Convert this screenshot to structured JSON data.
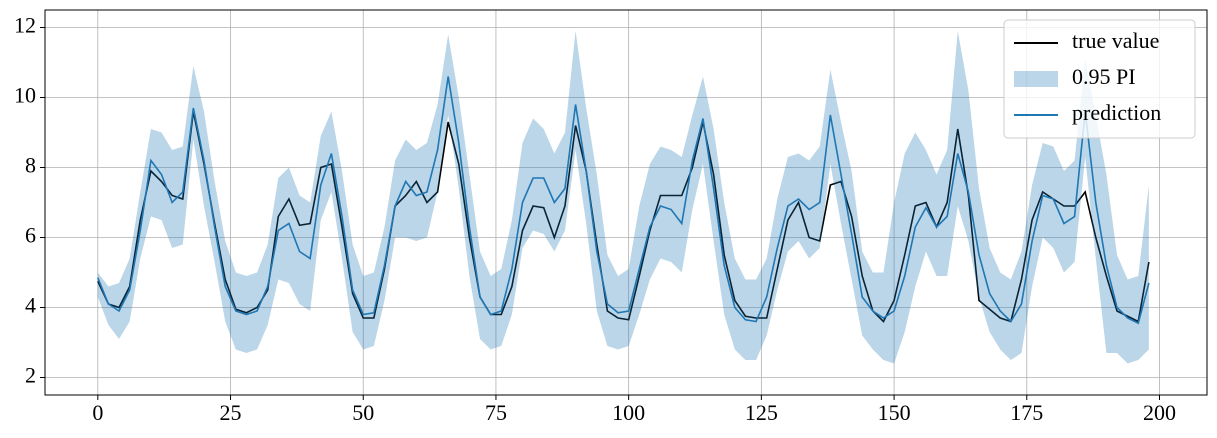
{
  "chart_data": {
    "type": "line",
    "x": [
      0,
      2,
      4,
      6,
      8,
      10,
      12,
      14,
      16,
      18,
      20,
      22,
      24,
      26,
      28,
      30,
      32,
      34,
      36,
      38,
      40,
      42,
      44,
      46,
      48,
      50,
      52,
      54,
      56,
      58,
      60,
      62,
      64,
      66,
      68,
      70,
      72,
      74,
      76,
      78,
      80,
      82,
      84,
      86,
      88,
      90,
      92,
      94,
      96,
      98,
      100,
      102,
      104,
      106,
      108,
      110,
      112,
      114,
      116,
      118,
      120,
      122,
      124,
      126,
      128,
      130,
      132,
      134,
      136,
      138,
      140,
      142,
      144,
      146,
      148,
      150,
      152,
      154,
      156,
      158,
      160,
      162,
      164,
      166,
      168,
      170,
      172,
      174,
      176,
      178,
      180,
      182,
      184,
      186,
      188,
      190,
      192,
      194,
      196,
      198
    ],
    "series": [
      {
        "name": "true value",
        "color": "#000000",
        "values": [
          4.75,
          4.1,
          4.0,
          4.6,
          6.5,
          7.9,
          7.6,
          7.2,
          7.1,
          9.6,
          8.1,
          6.4,
          4.8,
          3.95,
          3.85,
          4.0,
          4.5,
          6.6,
          7.1,
          6.35,
          6.4,
          8.0,
          8.1,
          6.3,
          4.4,
          3.7,
          3.7,
          5.1,
          6.9,
          7.2,
          7.6,
          7.0,
          7.3,
          9.3,
          8.1,
          6.0,
          4.3,
          3.8,
          3.8,
          4.6,
          6.2,
          6.9,
          6.85,
          6.0,
          6.9,
          9.2,
          7.9,
          5.8,
          3.9,
          3.7,
          3.65,
          4.9,
          6.2,
          7.2,
          7.2,
          7.2,
          8.0,
          9.3,
          7.8,
          5.5,
          4.2,
          3.75,
          3.7,
          3.7,
          5.1,
          6.5,
          7.0,
          6.0,
          5.9,
          7.5,
          7.6,
          6.6,
          4.9,
          3.9,
          3.6,
          4.2,
          5.5,
          6.9,
          7.0,
          6.3,
          7.0,
          9.1,
          7.2,
          4.2,
          3.95,
          3.7,
          3.6,
          4.8,
          6.5,
          7.3,
          7.1,
          6.9,
          6.9,
          7.3,
          6.0,
          4.9,
          3.9,
          3.75,
          3.6,
          5.3
        ]
      },
      {
        "name": "0.95 PI",
        "color": "#1f77b4",
        "opacity": 0.3,
        "type": "band",
        "lower": [
          4.3,
          3.5,
          3.1,
          3.6,
          5.4,
          6.6,
          6.5,
          5.7,
          5.8,
          8.8,
          6.9,
          5.3,
          3.6,
          2.8,
          2.7,
          2.8,
          3.5,
          4.8,
          4.7,
          4.1,
          3.9,
          6.5,
          7.3,
          5.4,
          3.3,
          2.8,
          2.9,
          4.2,
          6.0,
          6.0,
          5.9,
          6.0,
          7.3,
          9.5,
          7.4,
          4.9,
          3.1,
          2.8,
          2.9,
          3.8,
          5.7,
          6.2,
          6.1,
          5.6,
          6.2,
          8.5,
          6.4,
          3.9,
          2.9,
          2.8,
          2.9,
          3.8,
          4.8,
          5.4,
          5.3,
          5.0,
          6.8,
          8.1,
          5.9,
          3.8,
          2.8,
          2.5,
          2.5,
          3.2,
          4.5,
          5.6,
          5.9,
          5.4,
          5.7,
          8.1,
          6.4,
          4.8,
          3.2,
          2.8,
          2.5,
          2.4,
          3.3,
          4.6,
          5.6,
          4.9,
          4.9,
          6.9,
          5.9,
          4.3,
          3.3,
          2.8,
          2.5,
          2.7,
          4.6,
          6.0,
          5.7,
          5.0,
          5.3,
          8.3,
          5.4,
          2.7,
          2.7,
          2.4,
          2.5,
          2.8
        ],
        "upper": [
          5.0,
          4.6,
          4.7,
          5.4,
          7.3,
          9.1,
          9.0,
          8.5,
          8.6,
          10.9,
          9.6,
          7.6,
          5.9,
          5.0,
          4.9,
          5.0,
          5.8,
          7.7,
          8.0,
          7.2,
          7.0,
          8.9,
          9.6,
          7.9,
          5.8,
          4.9,
          5.0,
          6.3,
          8.2,
          8.8,
          8.5,
          8.7,
          9.8,
          11.8,
          10.0,
          7.8,
          5.6,
          4.9,
          5.1,
          6.5,
          8.7,
          9.4,
          9.1,
          8.4,
          9.0,
          11.9,
          9.7,
          7.8,
          5.5,
          4.9,
          5.1,
          6.9,
          8.1,
          8.6,
          8.5,
          8.3,
          9.5,
          10.6,
          9.1,
          7.0,
          5.4,
          4.8,
          4.8,
          5.4,
          7.1,
          8.3,
          8.4,
          8.2,
          8.6,
          10.8,
          9.3,
          7.9,
          5.6,
          5.0,
          5.0,
          7.0,
          8.4,
          9.0,
          8.5,
          7.8,
          8.5,
          11.9,
          10.2,
          7.4,
          5.7,
          5.0,
          4.8,
          5.6,
          7.5,
          8.7,
          8.6,
          7.9,
          8.2,
          11.1,
          9.5,
          7.8,
          5.5,
          4.8,
          4.9,
          7.5
        ]
      },
      {
        "name": "prediction",
        "color": "#1f77b4",
        "values": [
          4.85,
          4.1,
          3.9,
          4.5,
          6.2,
          8.2,
          7.8,
          7.0,
          7.3,
          9.7,
          8.2,
          6.3,
          4.6,
          3.9,
          3.8,
          3.9,
          4.6,
          6.2,
          6.4,
          5.6,
          5.4,
          7.5,
          8.4,
          6.6,
          4.5,
          3.8,
          3.85,
          5.2,
          6.9,
          7.6,
          7.2,
          7.3,
          8.5,
          10.6,
          8.7,
          6.3,
          4.3,
          3.8,
          3.9,
          5.1,
          7.0,
          7.7,
          7.7,
          7.0,
          7.4,
          9.8,
          7.9,
          5.6,
          4.1,
          3.85,
          3.9,
          5.1,
          6.3,
          6.9,
          6.8,
          6.4,
          8.2,
          9.4,
          7.4,
          5.2,
          4.0,
          3.65,
          3.6,
          4.3,
          5.7,
          6.9,
          7.1,
          6.8,
          7.0,
          9.5,
          7.8,
          6.1,
          4.3,
          3.9,
          3.7,
          3.9,
          4.9,
          6.3,
          6.85,
          6.3,
          6.6,
          8.4,
          7.3,
          5.5,
          4.4,
          3.9,
          3.6,
          4.1,
          5.9,
          7.2,
          7.1,
          6.4,
          6.6,
          9.6,
          7.0,
          5.2,
          4.0,
          3.7,
          3.55,
          4.7
        ]
      }
    ],
    "xlim": [
      -9.95,
      208.95
    ],
    "ylim": [
      1.5,
      12.5
    ],
    "xticks": [
      0,
      25,
      50,
      75,
      100,
      125,
      150,
      175,
      200
    ],
    "yticks": [
      2,
      4,
      6,
      8,
      10,
      12
    ],
    "grid": true,
    "legend": "upper right"
  }
}
